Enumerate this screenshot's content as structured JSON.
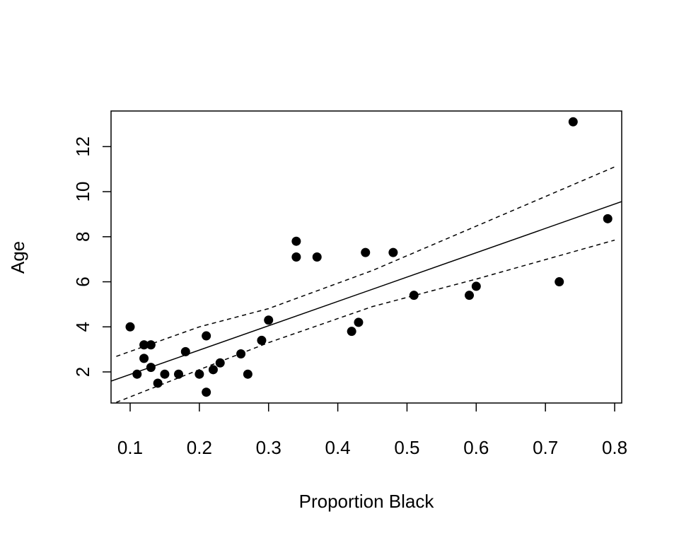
{
  "chart_data": {
    "type": "scatter",
    "xlabel": "Proportion Black",
    "ylabel": "Age",
    "xlim": [
      0.0724,
      0.8102
    ],
    "ylim": [
      0.62,
      13.58
    ],
    "xticks": [
      0.1,
      0.2,
      0.3,
      0.4,
      0.5,
      0.6,
      0.7,
      0.8
    ],
    "yticks": [
      2,
      4,
      6,
      8,
      10,
      12
    ],
    "series": [
      {
        "type": "scatter",
        "color": "#000000",
        "x": [
          0.1,
          0.11,
          0.12,
          0.12,
          0.13,
          0.13,
          0.14,
          0.15,
          0.17,
          0.18,
          0.2,
          0.21,
          0.21,
          0.22,
          0.23,
          0.26,
          0.27,
          0.29,
          0.3,
          0.34,
          0.34,
          0.37,
          0.42,
          0.43,
          0.44,
          0.48,
          0.51,
          0.59,
          0.6,
          0.72,
          0.74,
          0.79
        ],
        "values": [
          4.0,
          1.9,
          3.2,
          2.6,
          3.2,
          2.2,
          1.5,
          1.9,
          1.9,
          2.9,
          1.9,
          3.6,
          1.1,
          2.1,
          2.4,
          2.8,
          1.9,
          3.4,
          4.3,
          7.8,
          7.1,
          7.1,
          3.8,
          4.2,
          7.3,
          7.3,
          5.4,
          5.4,
          5.8,
          6.0,
          13.1,
          8.8
        ]
      },
      {
        "type": "line",
        "color": "#000000",
        "dash": false,
        "x": [
          0.0724,
          0.8102
        ],
        "values": [
          1.59,
          9.56
        ]
      },
      {
        "type": "line",
        "color": "#000000",
        "dash": true,
        "x": [
          0.08,
          0.2,
          0.3,
          0.45,
          0.6,
          0.8
        ],
        "values": [
          2.69,
          4.0,
          4.81,
          6.5,
          8.47,
          11.1
        ]
      },
      {
        "type": "line",
        "color": "#000000",
        "dash": true,
        "x": [
          0.08,
          0.2,
          0.3,
          0.45,
          0.6,
          0.8
        ],
        "values": [
          0.65,
          2.1,
          3.3,
          4.9,
          6.12,
          7.85
        ]
      }
    ]
  }
}
